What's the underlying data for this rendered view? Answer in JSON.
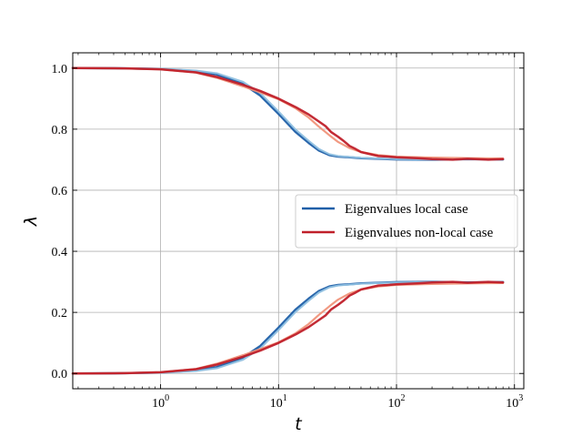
{
  "chart_data": {
    "type": "line",
    "title": "",
    "xlabel": "t",
    "ylabel": "λ",
    "xscale": "log",
    "xlim": [
      0.18,
      1200
    ],
    "ylim": [
      -0.05,
      1.05
    ],
    "x_ticks": [
      {
        "value": 1,
        "base": "10",
        "exp": "0"
      },
      {
        "value": 10,
        "base": "10",
        "exp": "1"
      },
      {
        "value": 100,
        "base": "10",
        "exp": "2"
      },
      {
        "value": 1000,
        "base": "10",
        "exp": "3"
      }
    ],
    "y_ticks": [
      {
        "value": 0.0,
        "label": "0.0"
      },
      {
        "value": 0.2,
        "label": "0.2"
      },
      {
        "value": 0.4,
        "label": "0.4"
      },
      {
        "value": 0.6,
        "label": "0.6"
      },
      {
        "value": 0.8,
        "label": "0.8"
      },
      {
        "value": 1.0,
        "label": "1.0"
      }
    ],
    "grid": true,
    "legend_position": "center-right",
    "legend": [
      {
        "label": "Eigenvalues local case",
        "color": "#1f5fa8"
      },
      {
        "label": "Eigenvalues non-local case",
        "color": "#c0202a"
      }
    ],
    "series": [
      {
        "group": "local",
        "color": "#1f5fa8",
        "width": 2.5,
        "x": [
          0.18,
          0.5,
          1,
          2,
          3,
          5,
          7,
          10,
          14,
          18,
          22,
          27,
          32,
          40,
          50,
          70,
          100,
          200,
          400,
          800
        ],
        "y": [
          1.0,
          0.999,
          0.997,
          0.99,
          0.979,
          0.948,
          0.91,
          0.85,
          0.79,
          0.755,
          0.73,
          0.715,
          0.71,
          0.708,
          0.705,
          0.703,
          0.701,
          0.7,
          0.702,
          0.701
        ]
      },
      {
        "group": "local",
        "color": "#1f5fa8",
        "width": 2.5,
        "x": [
          0.18,
          0.5,
          1,
          2,
          3,
          5,
          7,
          10,
          14,
          18,
          22,
          27,
          32,
          40,
          50,
          70,
          100,
          200,
          400,
          800
        ],
        "y": [
          0.0,
          0.001,
          0.003,
          0.01,
          0.021,
          0.052,
          0.09,
          0.15,
          0.21,
          0.245,
          0.27,
          0.285,
          0.29,
          0.292,
          0.295,
          0.297,
          0.299,
          0.3,
          0.298,
          0.299
        ]
      },
      {
        "group": "local-light",
        "color": "#8fc0e0",
        "width": 2,
        "x": [
          0.18,
          0.5,
          1,
          2,
          3,
          5,
          7,
          10,
          14,
          18,
          22,
          27,
          32,
          40,
          50,
          70,
          100,
          200,
          400,
          800
        ],
        "y": [
          1.0,
          0.999,
          0.998,
          0.992,
          0.983,
          0.955,
          0.918,
          0.858,
          0.798,
          0.762,
          0.735,
          0.718,
          0.712,
          0.709,
          0.706,
          0.704,
          0.702,
          0.701,
          0.703,
          0.702
        ]
      },
      {
        "group": "local-light",
        "color": "#8fc0e0",
        "width": 2,
        "x": [
          0.18,
          0.5,
          1,
          2,
          3,
          5,
          7,
          10,
          14,
          18,
          22,
          27,
          32,
          40,
          50,
          70,
          100,
          200,
          400,
          800
        ],
        "y": [
          0.0,
          0.001,
          0.002,
          0.008,
          0.017,
          0.045,
          0.082,
          0.142,
          0.202,
          0.238,
          0.265,
          0.282,
          0.288,
          0.291,
          0.294,
          0.296,
          0.298,
          0.299,
          0.297,
          0.298
        ]
      },
      {
        "group": "nonlocal-light",
        "color": "#f0937a",
        "width": 2.2,
        "x": [
          0.18,
          0.5,
          1,
          2,
          3,
          5,
          7,
          10,
          14,
          18,
          22,
          27,
          32,
          40,
          50,
          70,
          100,
          200,
          400,
          800
        ],
        "y": [
          1.0,
          0.999,
          0.996,
          0.985,
          0.968,
          0.94,
          0.92,
          0.898,
          0.868,
          0.838,
          0.808,
          0.78,
          0.758,
          0.738,
          0.725,
          0.715,
          0.71,
          0.707,
          0.705,
          0.704
        ]
      },
      {
        "group": "nonlocal-light",
        "color": "#f0937a",
        "width": 2.2,
        "x": [
          0.18,
          0.5,
          1,
          2,
          3,
          5,
          7,
          10,
          14,
          18,
          22,
          27,
          32,
          40,
          50,
          70,
          100,
          200,
          400,
          800
        ],
        "y": [
          0.0,
          0.001,
          0.004,
          0.015,
          0.032,
          0.06,
          0.08,
          0.102,
          0.132,
          0.162,
          0.192,
          0.22,
          0.242,
          0.262,
          0.275,
          0.285,
          0.29,
          0.293,
          0.295,
          0.296
        ]
      },
      {
        "group": "nonlocal",
        "color": "#c0202a",
        "width": 2.5,
        "x": [
          0.18,
          0.5,
          1,
          2,
          3,
          5,
          7,
          10,
          14,
          18,
          22,
          25,
          28,
          32,
          36,
          40,
          45,
          50,
          60,
          70,
          85,
          100,
          150,
          200,
          300,
          400,
          600,
          800
        ],
        "y": [
          1.0,
          0.999,
          0.996,
          0.986,
          0.971,
          0.945,
          0.925,
          0.9,
          0.872,
          0.848,
          0.825,
          0.81,
          0.79,
          0.775,
          0.76,
          0.745,
          0.735,
          0.725,
          0.718,
          0.712,
          0.71,
          0.708,
          0.705,
          0.702,
          0.7,
          0.703,
          0.7,
          0.702
        ]
      },
      {
        "group": "nonlocal",
        "color": "#c0202a",
        "width": 2.5,
        "x": [
          0.18,
          0.5,
          1,
          2,
          3,
          5,
          7,
          10,
          14,
          18,
          22,
          25,
          28,
          32,
          36,
          40,
          45,
          50,
          60,
          70,
          85,
          100,
          150,
          200,
          300,
          400,
          600,
          800
        ],
        "y": [
          0.0,
          0.001,
          0.004,
          0.014,
          0.029,
          0.055,
          0.075,
          0.1,
          0.128,
          0.152,
          0.175,
          0.19,
          0.21,
          0.225,
          0.24,
          0.255,
          0.265,
          0.275,
          0.282,
          0.288,
          0.29,
          0.292,
          0.295,
          0.298,
          0.3,
          0.297,
          0.3,
          0.298
        ]
      }
    ]
  }
}
